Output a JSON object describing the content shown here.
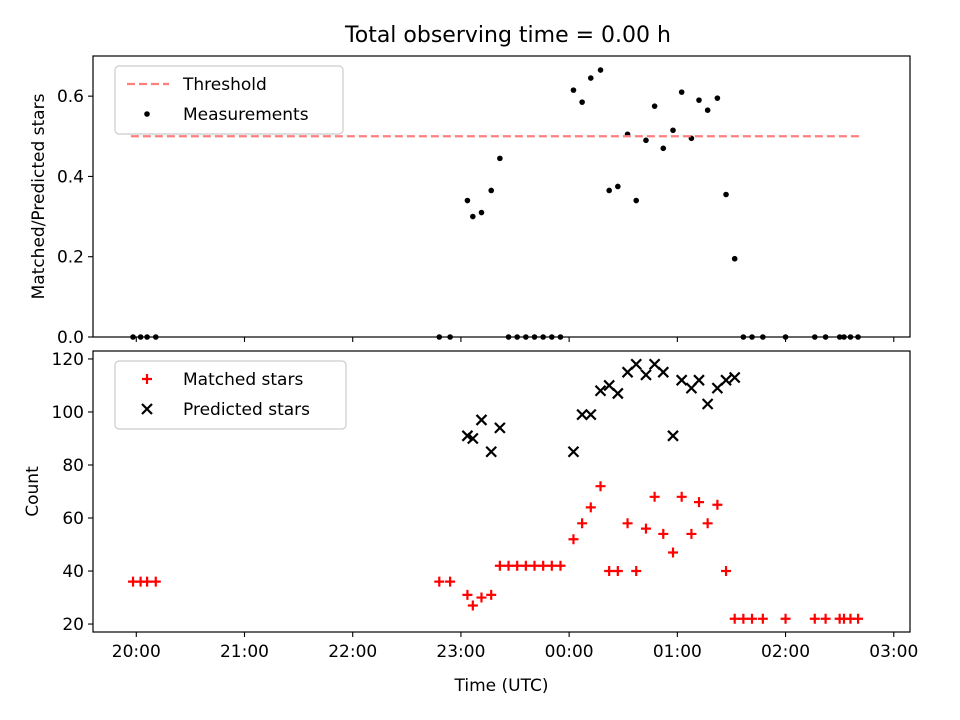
{
  "title": "Total observing time = 0.00 h",
  "chart_data": [
    {
      "type": "scatter",
      "panel": "top",
      "ylabel": "Matched/Predicted stars",
      "xlabel": "",
      "xlim": [
        -0.4,
        7.15
      ],
      "ylim": [
        0,
        0.7
      ],
      "grid": false,
      "legend_position": "top-left",
      "x_tick_labels": [
        "20:00",
        "21:00",
        "22:00",
        "23:00",
        "00:00",
        "01:00",
        "02:00",
        "03:00"
      ],
      "x_tick_values": [
        0,
        1,
        2,
        3,
        4,
        5,
        6,
        7
      ],
      "x_ticklabels_visible": false,
      "y_ticks": [
        0.0,
        0.2,
        0.4,
        0.6
      ],
      "y_tick_labels": [
        "0.0",
        "0.2",
        "0.4",
        "0.6"
      ],
      "x_unit": "hours since 20:00 UTC",
      "lines": [
        {
          "name": "Threshold",
          "color": "#ff7f7f",
          "dash": "dashed",
          "x": [
            -0.05,
            6.7
          ],
          "y": [
            0.5,
            0.5
          ]
        }
      ],
      "series": [
        {
          "name": "Measurements",
          "marker": "dot",
          "color": "#000000",
          "x": [
            -0.03,
            0.04,
            0.1,
            0.18,
            2.8,
            2.9,
            3.06,
            3.11,
            3.19,
            3.28,
            3.36,
            3.44,
            3.52,
            3.6,
            3.68,
            3.76,
            3.84,
            3.92,
            4.04,
            4.12,
            4.2,
            4.29,
            4.37,
            4.45,
            4.54,
            4.62,
            4.71,
            4.79,
            4.87,
            4.96,
            5.04,
            5.13,
            5.2,
            5.28,
            5.37,
            5.45,
            5.53,
            5.61,
            5.69,
            5.79,
            6.0,
            6.27,
            6.37,
            6.5,
            6.54,
            6.6,
            6.67
          ],
          "y": [
            0,
            0,
            0,
            0,
            0,
            0,
            0.34,
            0.3,
            0.31,
            0.365,
            0.445,
            0,
            0,
            0,
            0,
            0,
            0,
            0,
            0.615,
            0.585,
            0.645,
            0.665,
            0.365,
            0.375,
            0.505,
            0.34,
            0.49,
            0.575,
            0.47,
            0.515,
            0.61,
            0.495,
            0.59,
            0.565,
            0.595,
            0.355,
            0.195,
            0,
            0,
            0,
            0,
            0,
            0,
            0,
            0,
            0,
            0
          ]
        }
      ]
    },
    {
      "type": "scatter",
      "panel": "bottom",
      "ylabel": "Count",
      "xlabel": "Time (UTC)",
      "xlim": [
        -0.4,
        7.15
      ],
      "ylim": [
        17,
        123
      ],
      "grid": false,
      "legend_position": "top-left",
      "x_tick_labels": [
        "20:00",
        "21:00",
        "22:00",
        "23:00",
        "00:00",
        "01:00",
        "02:00",
        "03:00"
      ],
      "x_tick_values": [
        0,
        1,
        2,
        3,
        4,
        5,
        6,
        7
      ],
      "y_ticks": [
        20,
        40,
        60,
        80,
        100,
        120
      ],
      "y_tick_labels": [
        "20",
        "40",
        "60",
        "80",
        "100",
        "120"
      ],
      "x_unit": "hours since 20:00 UTC",
      "series": [
        {
          "name": "Matched stars",
          "marker": "plus",
          "color": "#ff0000",
          "x": [
            -0.03,
            0.04,
            0.1,
            0.18,
            2.8,
            2.9,
            3.06,
            3.11,
            3.19,
            3.28,
            3.36,
            3.44,
            3.52,
            3.6,
            3.68,
            3.76,
            3.84,
            3.92,
            4.04,
            4.12,
            4.2,
            4.29,
            4.37,
            4.45,
            4.54,
            4.62,
            4.71,
            4.79,
            4.87,
            4.96,
            5.04,
            5.13,
            5.2,
            5.28,
            5.37,
            5.45,
            5.53,
            5.61,
            5.69,
            5.79,
            6.0,
            6.27,
            6.37,
            6.5,
            6.54,
            6.6,
            6.67
          ],
          "y": [
            36,
            36,
            36,
            36,
            36,
            36,
            31,
            27,
            30,
            31,
            42,
            42,
            42,
            42,
            42,
            42,
            42,
            42,
            52,
            58,
            64,
            72,
            40,
            40,
            58,
            40,
            56,
            68,
            54,
            47,
            68,
            54,
            66,
            58,
            65,
            40,
            22,
            22,
            22,
            22,
            22,
            22,
            22,
            22,
            22,
            22,
            22
          ]
        },
        {
          "name": "Predicted stars",
          "marker": "x",
          "color": "#000000",
          "x": [
            3.06,
            3.11,
            3.19,
            3.28,
            3.36,
            4.04,
            4.12,
            4.2,
            4.29,
            4.37,
            4.45,
            4.54,
            4.62,
            4.71,
            4.79,
            4.87,
            4.96,
            5.04,
            5.13,
            5.2,
            5.28,
            5.37,
            5.45,
            5.53
          ],
          "y": [
            91,
            90,
            97,
            85,
            94,
            85,
            99,
            99,
            108,
            110,
            107,
            115,
            118,
            114,
            118,
            115,
            91,
            112,
            109,
            112,
            103,
            109,
            112,
            113
          ]
        }
      ]
    }
  ]
}
